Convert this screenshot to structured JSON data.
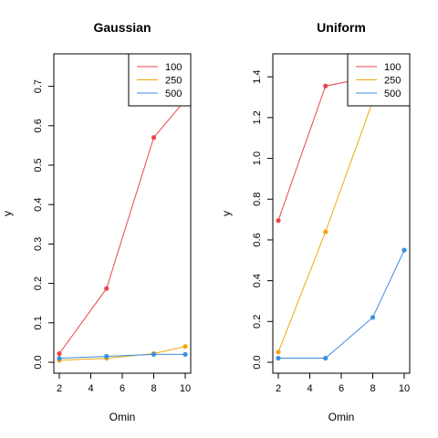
{
  "chart_data": [
    {
      "type": "line",
      "title": "Gaussian",
      "xlabel": "Omin",
      "ylabel": "y",
      "xlim": [
        2,
        10
      ],
      "ylim": [
        0,
        0.75
      ],
      "x_ticks": [
        2,
        4,
        6,
        8,
        10
      ],
      "y_ticks": [
        0.0,
        0.1,
        0.2,
        0.3,
        0.4,
        0.5,
        0.6,
        0.7
      ],
      "legend_position": "top-right",
      "x": [
        2,
        5,
        8,
        10
      ],
      "series": [
        {
          "name": "100",
          "color": "#e8474c",
          "values": [
            0.022,
            0.187,
            0.57,
            0.665
          ]
        },
        {
          "name": "250",
          "color": "#f2a60c",
          "values": [
            0.005,
            0.01,
            0.022,
            0.04
          ]
        },
        {
          "name": "500",
          "color": "#3b8ee0",
          "values": [
            0.01,
            0.015,
            0.02,
            0.02
          ]
        }
      ]
    },
    {
      "type": "line",
      "title": "Uniform",
      "xlabel": "Omin",
      "ylabel": "y",
      "xlim": [
        2,
        10
      ],
      "ylim": [
        0,
        1.45
      ],
      "x_ticks": [
        2,
        4,
        6,
        8,
        10
      ],
      "y_ticks": [
        0.0,
        0.2,
        0.4,
        0.6,
        0.8,
        1.0,
        1.2,
        1.4
      ],
      "legend_position": "top-right",
      "x": [
        2,
        5,
        8,
        10
      ],
      "series": [
        {
          "name": "100",
          "color": "#e8474c",
          "values": [
            0.695,
            1.355,
            1.4,
            1.42
          ]
        },
        {
          "name": "250",
          "color": "#f2a60c",
          "values": [
            0.05,
            0.64,
            1.28,
            1.4
          ]
        },
        {
          "name": "500",
          "color": "#3b8ee0",
          "values": [
            0.02,
            0.02,
            0.22,
            0.55
          ]
        }
      ]
    }
  ]
}
